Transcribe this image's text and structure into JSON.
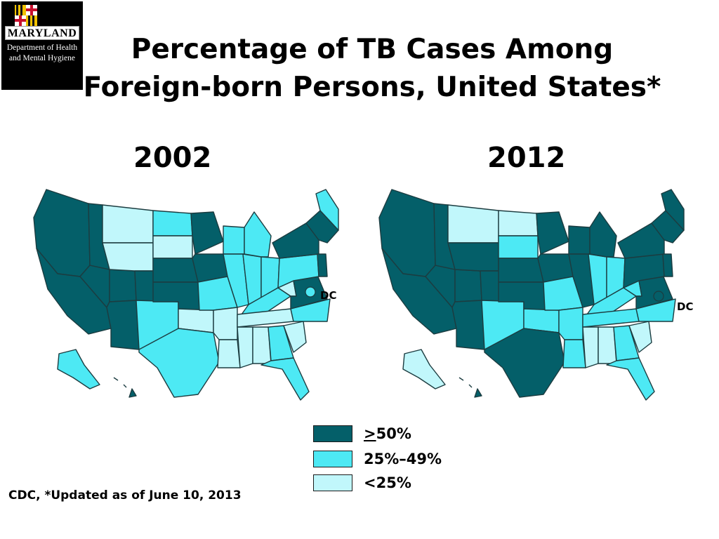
{
  "logo": {
    "name": "MARYLAND",
    "department": "Department of Health and Mental Hygiene"
  },
  "title": {
    "line1": "Percentage of TB Cases Among",
    "line2": "Foreign-born Persons, United States*"
  },
  "maps": [
    {
      "year": "2002",
      "dc_label": "DC",
      "dc_category": "mid"
    },
    {
      "year": "2012",
      "dc_label": "DC",
      "dc_category": "high"
    }
  ],
  "legend": {
    "items": [
      {
        "label_prefix": ">",
        "label_rest": "50%",
        "category": "high",
        "color": "#045f69"
      },
      {
        "label": "25%–49%",
        "category": "mid",
        "color": "#4de9f4"
      },
      {
        "label": "<25%",
        "category": "low",
        "color": "#c1f7fb"
      }
    ]
  },
  "source": "CDC, *Updated as of June 10, 2013",
  "colors": {
    "high": "#045f69",
    "mid": "#4de9f4",
    "low": "#c1f7fb"
  }
}
